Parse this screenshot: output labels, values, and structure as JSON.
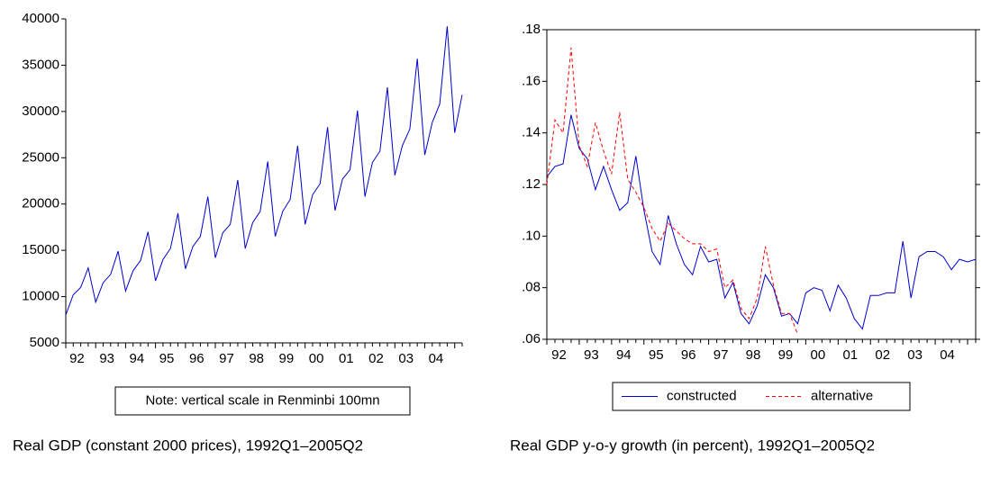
{
  "chart_data": [
    {
      "type": "line",
      "x_labels": [
        "92",
        "93",
        "94",
        "95",
        "96",
        "97",
        "98",
        "99",
        "00",
        "01",
        "02",
        "03",
        "04"
      ],
      "series": [
        {
          "color": "#0000cc",
          "style": "solid",
          "values": [
            8000,
            10200,
            11000,
            13100,
            9400,
            11500,
            12400,
            14900,
            10600,
            12800,
            13900,
            17000,
            11700,
            14000,
            15200,
            19000,
            13000,
            15400,
            16500,
            20800,
            14200,
            16900,
            17800,
            22600,
            15200,
            18000,
            19200,
            24600,
            16500,
            19200,
            20500,
            26300,
            17800,
            21000,
            22200,
            28300,
            19300,
            22700,
            23700,
            30100,
            20800,
            24500,
            25700,
            32600,
            23100,
            26300,
            28100,
            35700,
            25300,
            28800,
            30800,
            39200,
            27700,
            31800
          ]
        }
      ],
      "ylim": [
        5000,
        40000
      ],
      "yticks": [
        5000,
        10000,
        15000,
        20000,
        25000,
        30000,
        35000,
        40000
      ],
      "annotation": "Note: vertical scale in Renminbi 100mn",
      "caption": "Real GDP (constant 2000 prices), 1992Q1–2005Q2",
      "frame": false
    },
    {
      "type": "line",
      "x_labels": [
        "92",
        "93",
        "94",
        "95",
        "96",
        "97",
        "98",
        "99",
        "00",
        "01",
        "02",
        "03",
        "04"
      ],
      "series": [
        {
          "name": "constructed",
          "color": "#0000cc",
          "style": "solid",
          "values": [
            0.123,
            0.127,
            0.128,
            0.147,
            0.134,
            0.13,
            0.118,
            0.127,
            0.118,
            0.11,
            0.113,
            0.131,
            0.11,
            0.094,
            0.089,
            0.108,
            0.097,
            0.089,
            0.085,
            0.096,
            0.09,
            0.091,
            0.076,
            0.082,
            0.07,
            0.066,
            0.073,
            0.085,
            0.08,
            0.069,
            0.07,
            0.066,
            0.078,
            0.08,
            0.079,
            0.071,
            0.081,
            0.076,
            0.068,
            0.064,
            0.077,
            0.077,
            0.078,
            0.078,
            0.098,
            0.076,
            0.092,
            0.094,
            0.094,
            0.092,
            0.087,
            0.091,
            0.09,
            0.091
          ]
        },
        {
          "name": "alternative",
          "color": "#ff0000",
          "style": "dashed",
          "values": [
            0.12,
            0.145,
            0.14,
            0.173,
            0.135,
            0.127,
            0.144,
            0.133,
            0.124,
            0.148,
            0.122,
            0.117,
            0.111,
            0.103,
            0.098,
            0.105,
            0.102,
            0.099,
            0.097,
            0.097,
            0.094,
            0.095,
            0.08,
            0.083,
            0.072,
            0.068,
            0.076,
            0.096,
            0.081,
            0.07,
            0.07,
            0.062,
            null,
            null,
            null,
            null,
            null,
            null,
            null,
            null,
            null,
            null,
            null,
            null,
            null,
            null,
            null,
            null,
            null,
            null,
            null,
            null,
            null,
            null
          ]
        }
      ],
      "ylim": [
        0.06,
        0.18
      ],
      "yticks": [
        {
          "value": 0.06,
          "label": ".06"
        },
        {
          "value": 0.08,
          "label": ".08"
        },
        {
          "value": 0.1,
          "label": ".10"
        },
        {
          "value": 0.12,
          "label": ".12"
        },
        {
          "value": 0.14,
          "label": ".14"
        },
        {
          "value": 0.16,
          "label": ".16"
        },
        {
          "value": 0.18,
          "label": ".18"
        }
      ],
      "caption": "Real GDP y-o-y growth (in percent), 1992Q1–2005Q2",
      "frame": true
    }
  ]
}
